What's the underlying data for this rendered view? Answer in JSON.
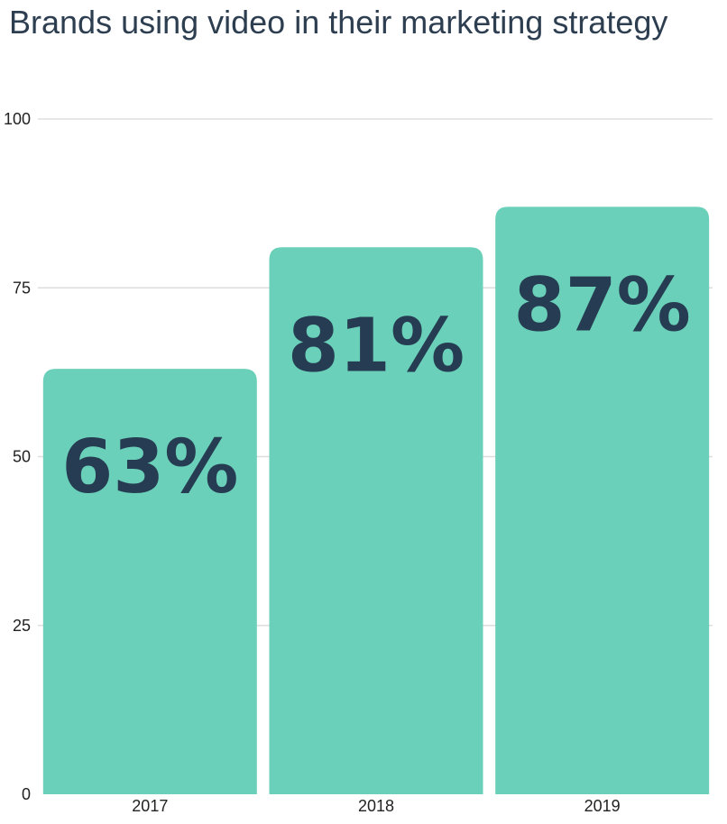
{
  "chart_data": {
    "type": "bar",
    "title": "Brands using video in their marketing strategy",
    "categories": [
      "2017",
      "2018",
      "2019"
    ],
    "values": [
      63,
      81,
      87
    ],
    "data_labels": [
      "63%",
      "81%",
      "87%"
    ],
    "ylim": [
      0,
      100
    ],
    "yticks": [
      "0",
      "25",
      "50",
      "75",
      "100"
    ],
    "grid": true,
    "legend": "none",
    "colors": {
      "bar": "#6bd0b9",
      "label": "#253c52",
      "grid": "#dddddd"
    }
  }
}
